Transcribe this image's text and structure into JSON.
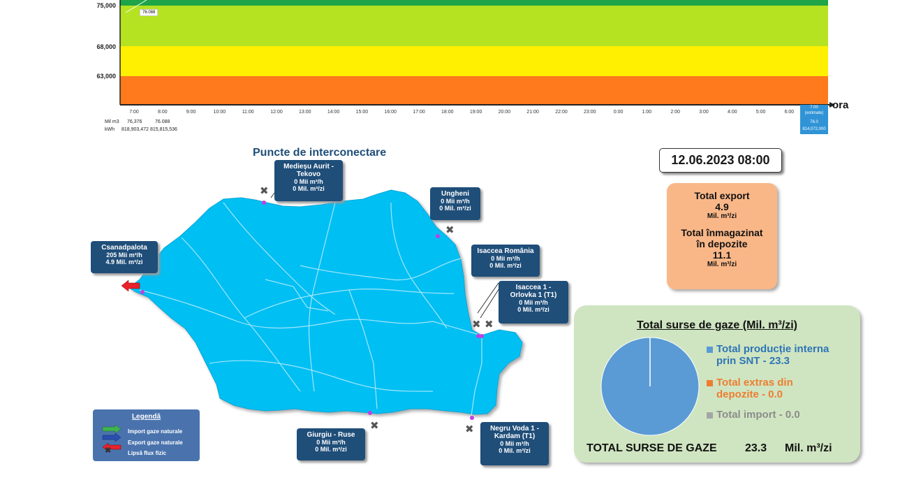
{
  "chart_data": {
    "type": "line",
    "y_ticks": [
      "75,000",
      "68,000",
      "63,000"
    ],
    "x": [
      "7:00",
      "8:00",
      "9:00",
      "10:00",
      "11:00",
      "12:00",
      "13:00",
      "14:00",
      "15:00",
      "16:00",
      "17:00",
      "18:00",
      "19:00",
      "20:00",
      "21:00",
      "22:00",
      "23:00",
      "0:00",
      "1:00",
      "2:00",
      "3:00",
      "4:00",
      "5:00",
      "6:00"
    ],
    "xlabel": "ora",
    "marker_value": "76.088",
    "rows": {
      "mil_m3_label": "Mil m3",
      "kwh_label": "kWh",
      "mil_m3": [
        "76,376",
        "76.088"
      ],
      "kwh": [
        "818,903,472",
        "815,815,536"
      ]
    },
    "estimate": {
      "hour": "7:00",
      "tag": "(estimate)",
      "mil_m3": "76.0",
      "kwh": "814,072,000"
    },
    "band_colors": [
      "#1fa447",
      "#b5e221",
      "#ffef00",
      "#ff7a1c"
    ]
  },
  "map": {
    "title": "Puncte de interconectare",
    "points": [
      {
        "name": "Medieșu Aurit - Tekovo",
        "v1": "0 Mii  m³/h",
        "v2": "0 Mil. m³/zi"
      },
      {
        "name": "Ungheni",
        "v1": "0 Mii  m³/h",
        "v2": "0 Mil. m³/zi"
      },
      {
        "name": "Csanadpalota",
        "v1": "205 Mii  m³/h",
        "v2": "4.9 Mil. m³/zi"
      },
      {
        "name": "Isaccea România",
        "v1": "0 Mii  m³/h",
        "v2": "0 Mil. m³/zi"
      },
      {
        "name": "Isaccea 1 - Orlovka 1 (T1)",
        "v1": "0 Mii  m³/h",
        "v2": "0 Mil. m³/zi"
      },
      {
        "name": "Giurgiu - Ruse",
        "v1": "0 Mii  m³/h",
        "v2": "0 Mil. m³/zi"
      },
      {
        "name": "Negru Voda 1 - Kardam (T1)",
        "v1": "0 Mii  m³/h",
        "v2": "0 Mil. m³/zi"
      }
    ]
  },
  "legend": {
    "title": "Legendă",
    "items": [
      "Import gaze naturale",
      "Export gaze naturale",
      "Lipsă flux fizic"
    ]
  },
  "datetime": "12.06.2023 08:00",
  "summary": {
    "export_label": "Total export",
    "export_value": "4.9",
    "export_unit": "Mil. m³/zi",
    "storage_label_1": "Total înmagazinat",
    "storage_label_2": "în depozite",
    "storage_value": "11.1",
    "storage_unit": "Mil. m³/zi"
  },
  "sources": {
    "title": "Total surse de gaze  (Mil. m³/zi)",
    "legend": [
      {
        "line1": "Total producție interna",
        "line2": "prin SNT - 23.3",
        "color": "#5b9bd5"
      },
      {
        "line1": "Total extras din",
        "line2": "depozite - 0.0",
        "color": "#ed7d31"
      },
      {
        "line1": "Total import - 0.0",
        "line2": "",
        "color": "#a5a5a5"
      }
    ],
    "total_label": "TOTAL SURSE DE GAZE",
    "total_value": "23.3",
    "total_unit": "Mil. m³/zi"
  }
}
